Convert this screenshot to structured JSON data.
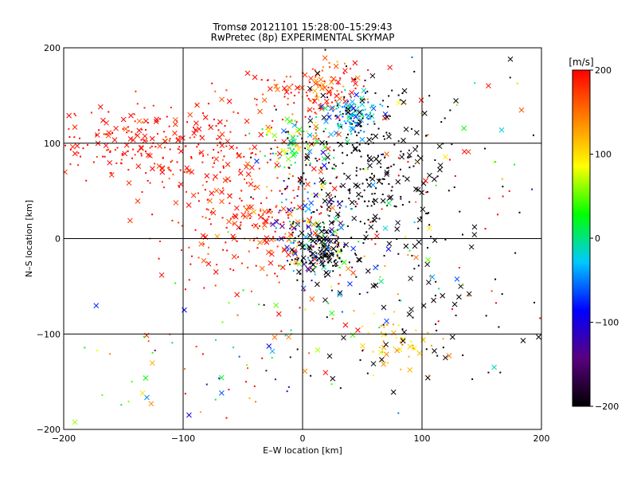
{
  "chart_data": {
    "type": "scatter",
    "title": "Tromsø 20121101 15:28:00–15:29:43",
    "subtitle": "RwPretec (8p) EXPERIMENTAL SKYMAP",
    "xlabel": "E–W location [km]",
    "ylabel": "N–S location [km]",
    "xlim": [
      -200,
      200
    ],
    "ylim": [
      -200,
      200
    ],
    "x_ticks": [
      -200,
      -100,
      0,
      100,
      200
    ],
    "y_ticks": [
      -200,
      -100,
      0,
      100,
      200
    ],
    "x_tick_labels": [
      "−200",
      "−100",
      "0",
      "100",
      "200"
    ],
    "y_tick_labels": [
      "−200",
      "−100",
      "0",
      "100",
      "200"
    ],
    "grid": true,
    "colorbar": {
      "label": "[m/s]",
      "range": [
        -200,
        200
      ],
      "ticks": [
        200,
        100,
        0,
        -100,
        -200
      ],
      "tick_labels": [
        "200",
        "100",
        "0",
        "−100",
        "−200"
      ],
      "colormap": [
        "#000000",
        "#5a0080",
        "#0000ff",
        "#00c8ff",
        "#00ff00",
        "#ffff00",
        "#ff8000",
        "#ff0000"
      ]
    },
    "clusters": [
      {
        "cx": -130,
        "cy": 100,
        "sx": 55,
        "sy": 22,
        "v": 195,
        "n": 230,
        "vs": 15
      },
      {
        "cx": -45,
        "cy": 50,
        "sx": 45,
        "sy": 55,
        "v": 190,
        "n": 240,
        "vs": 25
      },
      {
        "cx": -30,
        "cy": 10,
        "sx": 25,
        "sy": 25,
        "v": 185,
        "n": 100,
        "vs": 30
      },
      {
        "cx": 15,
        "cy": 155,
        "sx": 20,
        "sy": 15,
        "v": 180,
        "n": 130,
        "vs": 30
      },
      {
        "cx": 40,
        "cy": 130,
        "sx": 12,
        "sy": 10,
        "v": -40,
        "n": 110,
        "vs": 30
      },
      {
        "cx": -5,
        "cy": 100,
        "sx": 15,
        "sy": 15,
        "v": 40,
        "n": 90,
        "vs": 60
      },
      {
        "cx": 5,
        "cy": 10,
        "sx": 15,
        "sy": 30,
        "v": -60,
        "n": 160,
        "vs": 90
      },
      {
        "cx": 15,
        "cy": -15,
        "sx": 12,
        "sy": 12,
        "v": -200,
        "n": 110,
        "vs": 10
      },
      {
        "cx": 55,
        "cy": 90,
        "sx": 40,
        "sy": 45,
        "v": -200,
        "n": 200,
        "vs": 10
      },
      {
        "cx": 60,
        "cy": 40,
        "sx": 30,
        "sy": 40,
        "v": -200,
        "n": 120,
        "vs": 10
      },
      {
        "cx": 80,
        "cy": -110,
        "sx": 15,
        "sy": 15,
        "v": 120,
        "n": 50,
        "vs": 20
      },
      {
        "cx": 100,
        "cy": -80,
        "sx": 60,
        "sy": 60,
        "v": -200,
        "n": 80,
        "vs": 10
      },
      {
        "cx": 30,
        "cy": -60,
        "sx": 50,
        "sy": 60,
        "v": 60,
        "n": 80,
        "vs": 120
      },
      {
        "cx": -80,
        "cy": -130,
        "sx": 50,
        "sy": 40,
        "v": 80,
        "n": 60,
        "vs": 120
      },
      {
        "cx": 130,
        "cy": 60,
        "sx": 50,
        "sy": 80,
        "v": 100,
        "n": 60,
        "vs": 150
      }
    ],
    "marker_mix": {
      "dot": 0.68,
      "cross": 0.32
    }
  }
}
